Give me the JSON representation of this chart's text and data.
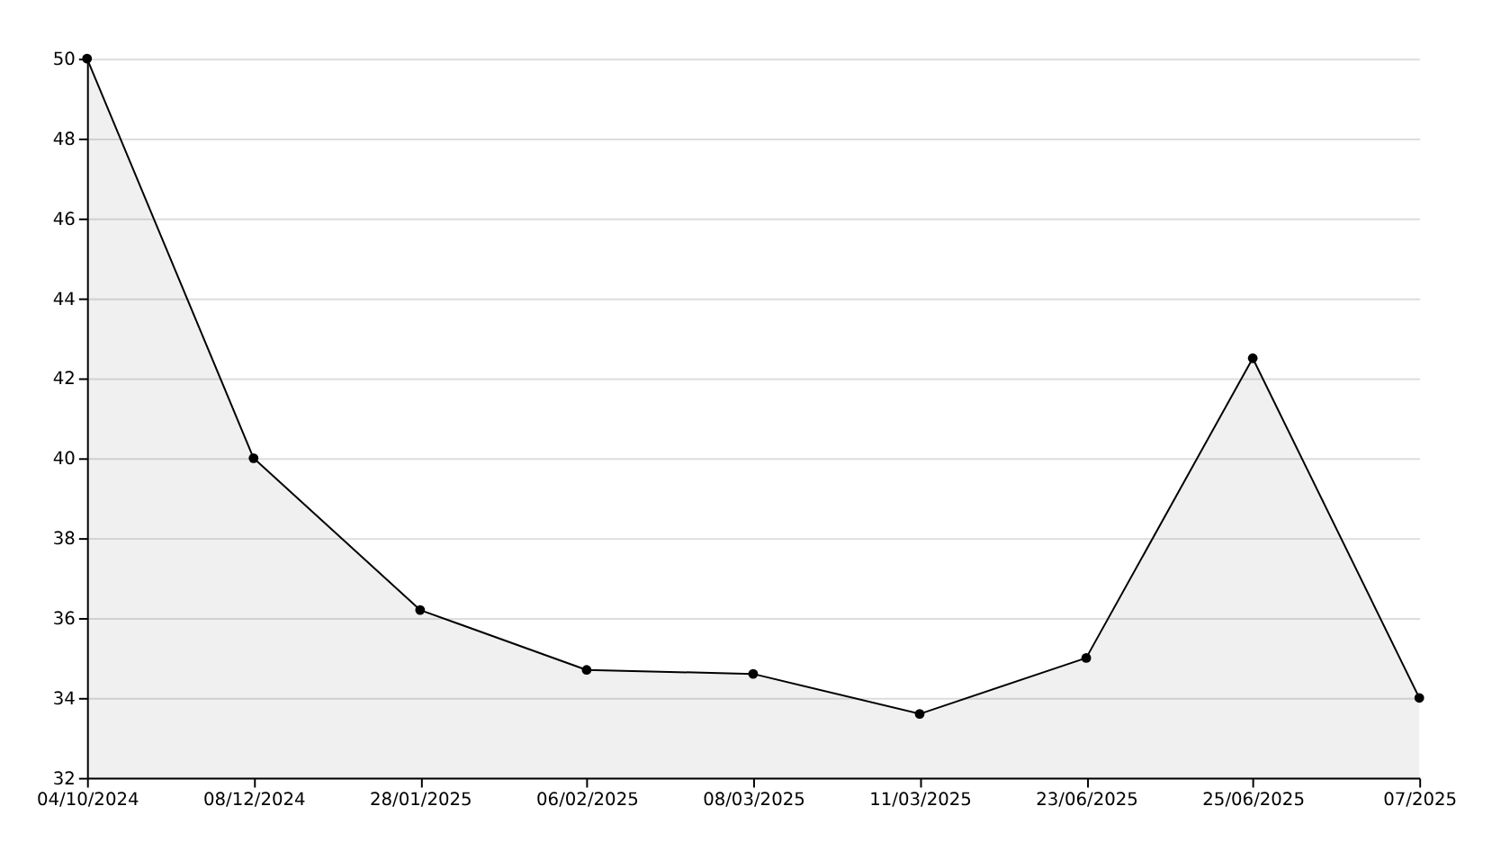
{
  "chart_data": {
    "type": "area",
    "categories": [
      "04/10/2024",
      "08/12/2024",
      "28/01/2025",
      "06/02/2025",
      "08/03/2025",
      "11/03/2025",
      "23/06/2025",
      "25/06/2025",
      "07/2025"
    ],
    "series": [
      {
        "color": "#000000",
        "values": [
          50,
          40,
          36.2,
          34.7,
          34.6,
          33.6,
          35,
          42.5,
          34
        ]
      }
    ],
    "ylim": [
      32,
      50
    ],
    "yticks": [
      32,
      34,
      36,
      38,
      40,
      42,
      44,
      46,
      48,
      50
    ],
    "grid": "y",
    "marker": "circle",
    "line_style": "solid"
  }
}
